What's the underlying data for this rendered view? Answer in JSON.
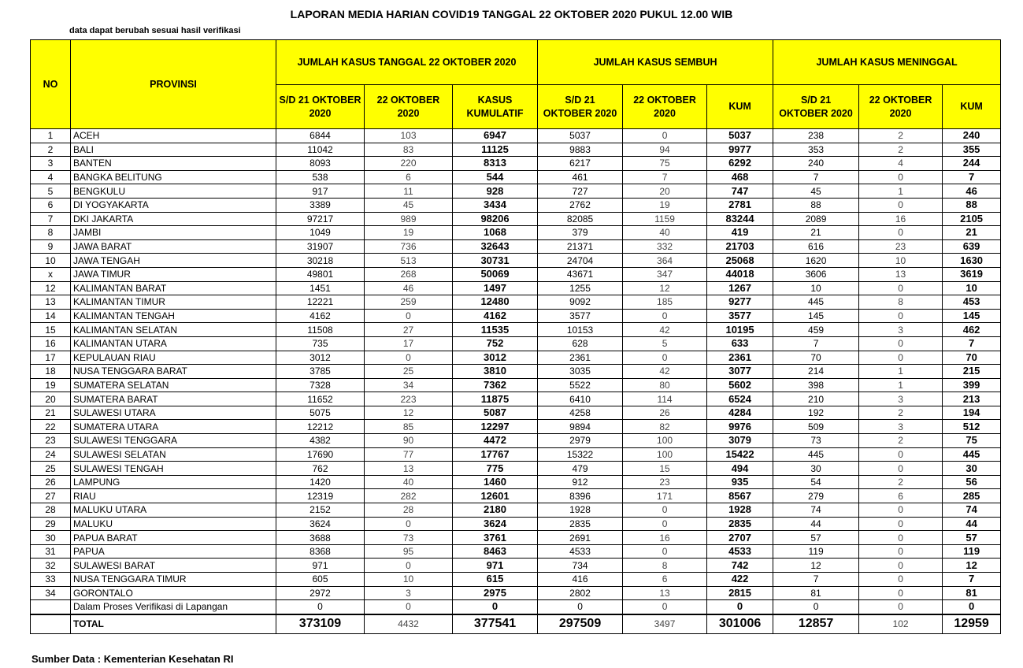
{
  "title": "LAPORAN MEDIA HARIAN COVID19 TANGGAL 22 OKTOBER 2020 PUKUL 12.00 WIB",
  "note": "data dapat berubah sesuai hasil verifikasi",
  "table": {
    "header": {
      "no": "NO",
      "provinsi": "PROVINSI",
      "groups": [
        "JUMLAH KASUS TANGGAL 22 OKTOBER 2020",
        "JUMLAH KASUS SEMBUH",
        "JUMLAH KASUS MENINGGAL"
      ],
      "columns": [
        "S/D 21 OKTOBER 2020",
        "22 OKTOBER 2020",
        "KASUS KUMULATIF",
        "S/D 21 OKTOBER 2020",
        "22 OKTOBER 2020",
        "KUM",
        "S/D 21 OKTOBER 2020",
        "22 OKTOBER 2020",
        "KUM"
      ]
    },
    "rows": [
      [
        1,
        "ACEH",
        6844,
        103,
        6947,
        5037,
        0,
        5037,
        238,
        2,
        240
      ],
      [
        2,
        "BALI",
        11042,
        83,
        11125,
        9883,
        94,
        9977,
        353,
        2,
        355
      ],
      [
        3,
        "BANTEN",
        8093,
        220,
        8313,
        6217,
        75,
        6292,
        240,
        4,
        244
      ],
      [
        4,
        "BANGKA BELITUNG",
        538,
        6,
        544,
        461,
        7,
        468,
        7,
        0,
        7
      ],
      [
        5,
        "BENGKULU",
        917,
        11,
        928,
        727,
        20,
        747,
        45,
        1,
        46
      ],
      [
        6,
        "DI YOGYAKARTA",
        3389,
        45,
        3434,
        2762,
        19,
        2781,
        88,
        0,
        88
      ],
      [
        7,
        "DKI JAKARTA",
        97217,
        989,
        98206,
        82085,
        1159,
        83244,
        2089,
        16,
        2105
      ],
      [
        8,
        "JAMBI",
        1049,
        19,
        1068,
        379,
        40,
        419,
        21,
        0,
        21
      ],
      [
        9,
        "JAWA BARAT",
        31907,
        736,
        32643,
        21371,
        332,
        21703,
        616,
        23,
        639
      ],
      [
        10,
        "JAWA TENGAH",
        30218,
        513,
        30731,
        24704,
        364,
        25068,
        1620,
        10,
        1630
      ],
      [
        "x",
        "JAWA TIMUR",
        49801,
        268,
        50069,
        43671,
        347,
        44018,
        3606,
        13,
        3619
      ],
      [
        12,
        "KALIMANTAN BARAT",
        1451,
        46,
        1497,
        1255,
        12,
        1267,
        10,
        0,
        10
      ],
      [
        13,
        "KALIMANTAN TIMUR",
        12221,
        259,
        12480,
        9092,
        185,
        9277,
        445,
        8,
        453
      ],
      [
        14,
        "KALIMANTAN TENGAH",
        4162,
        0,
        4162,
        3577,
        0,
        3577,
        145,
        0,
        145
      ],
      [
        15,
        "KALIMANTAN SELATAN",
        11508,
        27,
        11535,
        10153,
        42,
        10195,
        459,
        3,
        462
      ],
      [
        16,
        "KALIMANTAN UTARA",
        735,
        17,
        752,
        628,
        5,
        633,
        7,
        0,
        7
      ],
      [
        17,
        "KEPULAUAN RIAU",
        3012,
        0,
        3012,
        2361,
        0,
        2361,
        70,
        0,
        70
      ],
      [
        18,
        "NUSA TENGGARA BARAT",
        3785,
        25,
        3810,
        3035,
        42,
        3077,
        214,
        1,
        215
      ],
      [
        19,
        "SUMATERA SELATAN",
        7328,
        34,
        7362,
        5522,
        80,
        5602,
        398,
        1,
        399
      ],
      [
        20,
        "SUMATERA BARAT",
        11652,
        223,
        11875,
        6410,
        114,
        6524,
        210,
        3,
        213
      ],
      [
        21,
        "SULAWESI UTARA",
        5075,
        12,
        5087,
        4258,
        26,
        4284,
        192,
        2,
        194
      ],
      [
        22,
        "SUMATERA UTARA",
        12212,
        85,
        12297,
        9894,
        82,
        9976,
        509,
        3,
        512
      ],
      [
        23,
        "SULAWESI TENGGARA",
        4382,
        90,
        4472,
        2979,
        100,
        3079,
        73,
        2,
        75
      ],
      [
        24,
        "SULAWESI SELATAN",
        17690,
        77,
        17767,
        15322,
        100,
        15422,
        445,
        0,
        445
      ],
      [
        25,
        "SULAWESI TENGAH",
        762,
        13,
        775,
        479,
        15,
        494,
        30,
        0,
        30
      ],
      [
        26,
        "LAMPUNG",
        1420,
        40,
        1460,
        912,
        23,
        935,
        54,
        2,
        56
      ],
      [
        27,
        "RIAU",
        12319,
        282,
        12601,
        8396,
        171,
        8567,
        279,
        6,
        285
      ],
      [
        28,
        "MALUKU UTARA",
        2152,
        28,
        2180,
        1928,
        0,
        1928,
        74,
        0,
        74
      ],
      [
        29,
        "MALUKU",
        3624,
        0,
        3624,
        2835,
        0,
        2835,
        44,
        0,
        44
      ],
      [
        30,
        "PAPUA BARAT",
        3688,
        73,
        3761,
        2691,
        16,
        2707,
        57,
        0,
        57
      ],
      [
        31,
        "PAPUA",
        8368,
        95,
        8463,
        4533,
        0,
        4533,
        119,
        0,
        119
      ],
      [
        32,
        "SULAWESI BARAT",
        971,
        0,
        971,
        734,
        8,
        742,
        12,
        0,
        12
      ],
      [
        33,
        "NUSA TENGGARA TIMUR",
        605,
        10,
        615,
        416,
        6,
        422,
        7,
        0,
        7
      ],
      [
        34,
        "GORONTALO",
        2972,
        3,
        2975,
        2802,
        13,
        2815,
        81,
        0,
        81
      ],
      [
        null,
        "Dalam Proses Verifikasi di Lapangan",
        0,
        0,
        0,
        0,
        0,
        0,
        0,
        0,
        0
      ]
    ],
    "total": [
      null,
      "TOTAL",
      373109,
      4432,
      377541,
      297509,
      3497,
      301006,
      12857,
      102,
      12959
    ]
  },
  "source": "Sumber Data : Kementerian Kesehatan RI"
}
